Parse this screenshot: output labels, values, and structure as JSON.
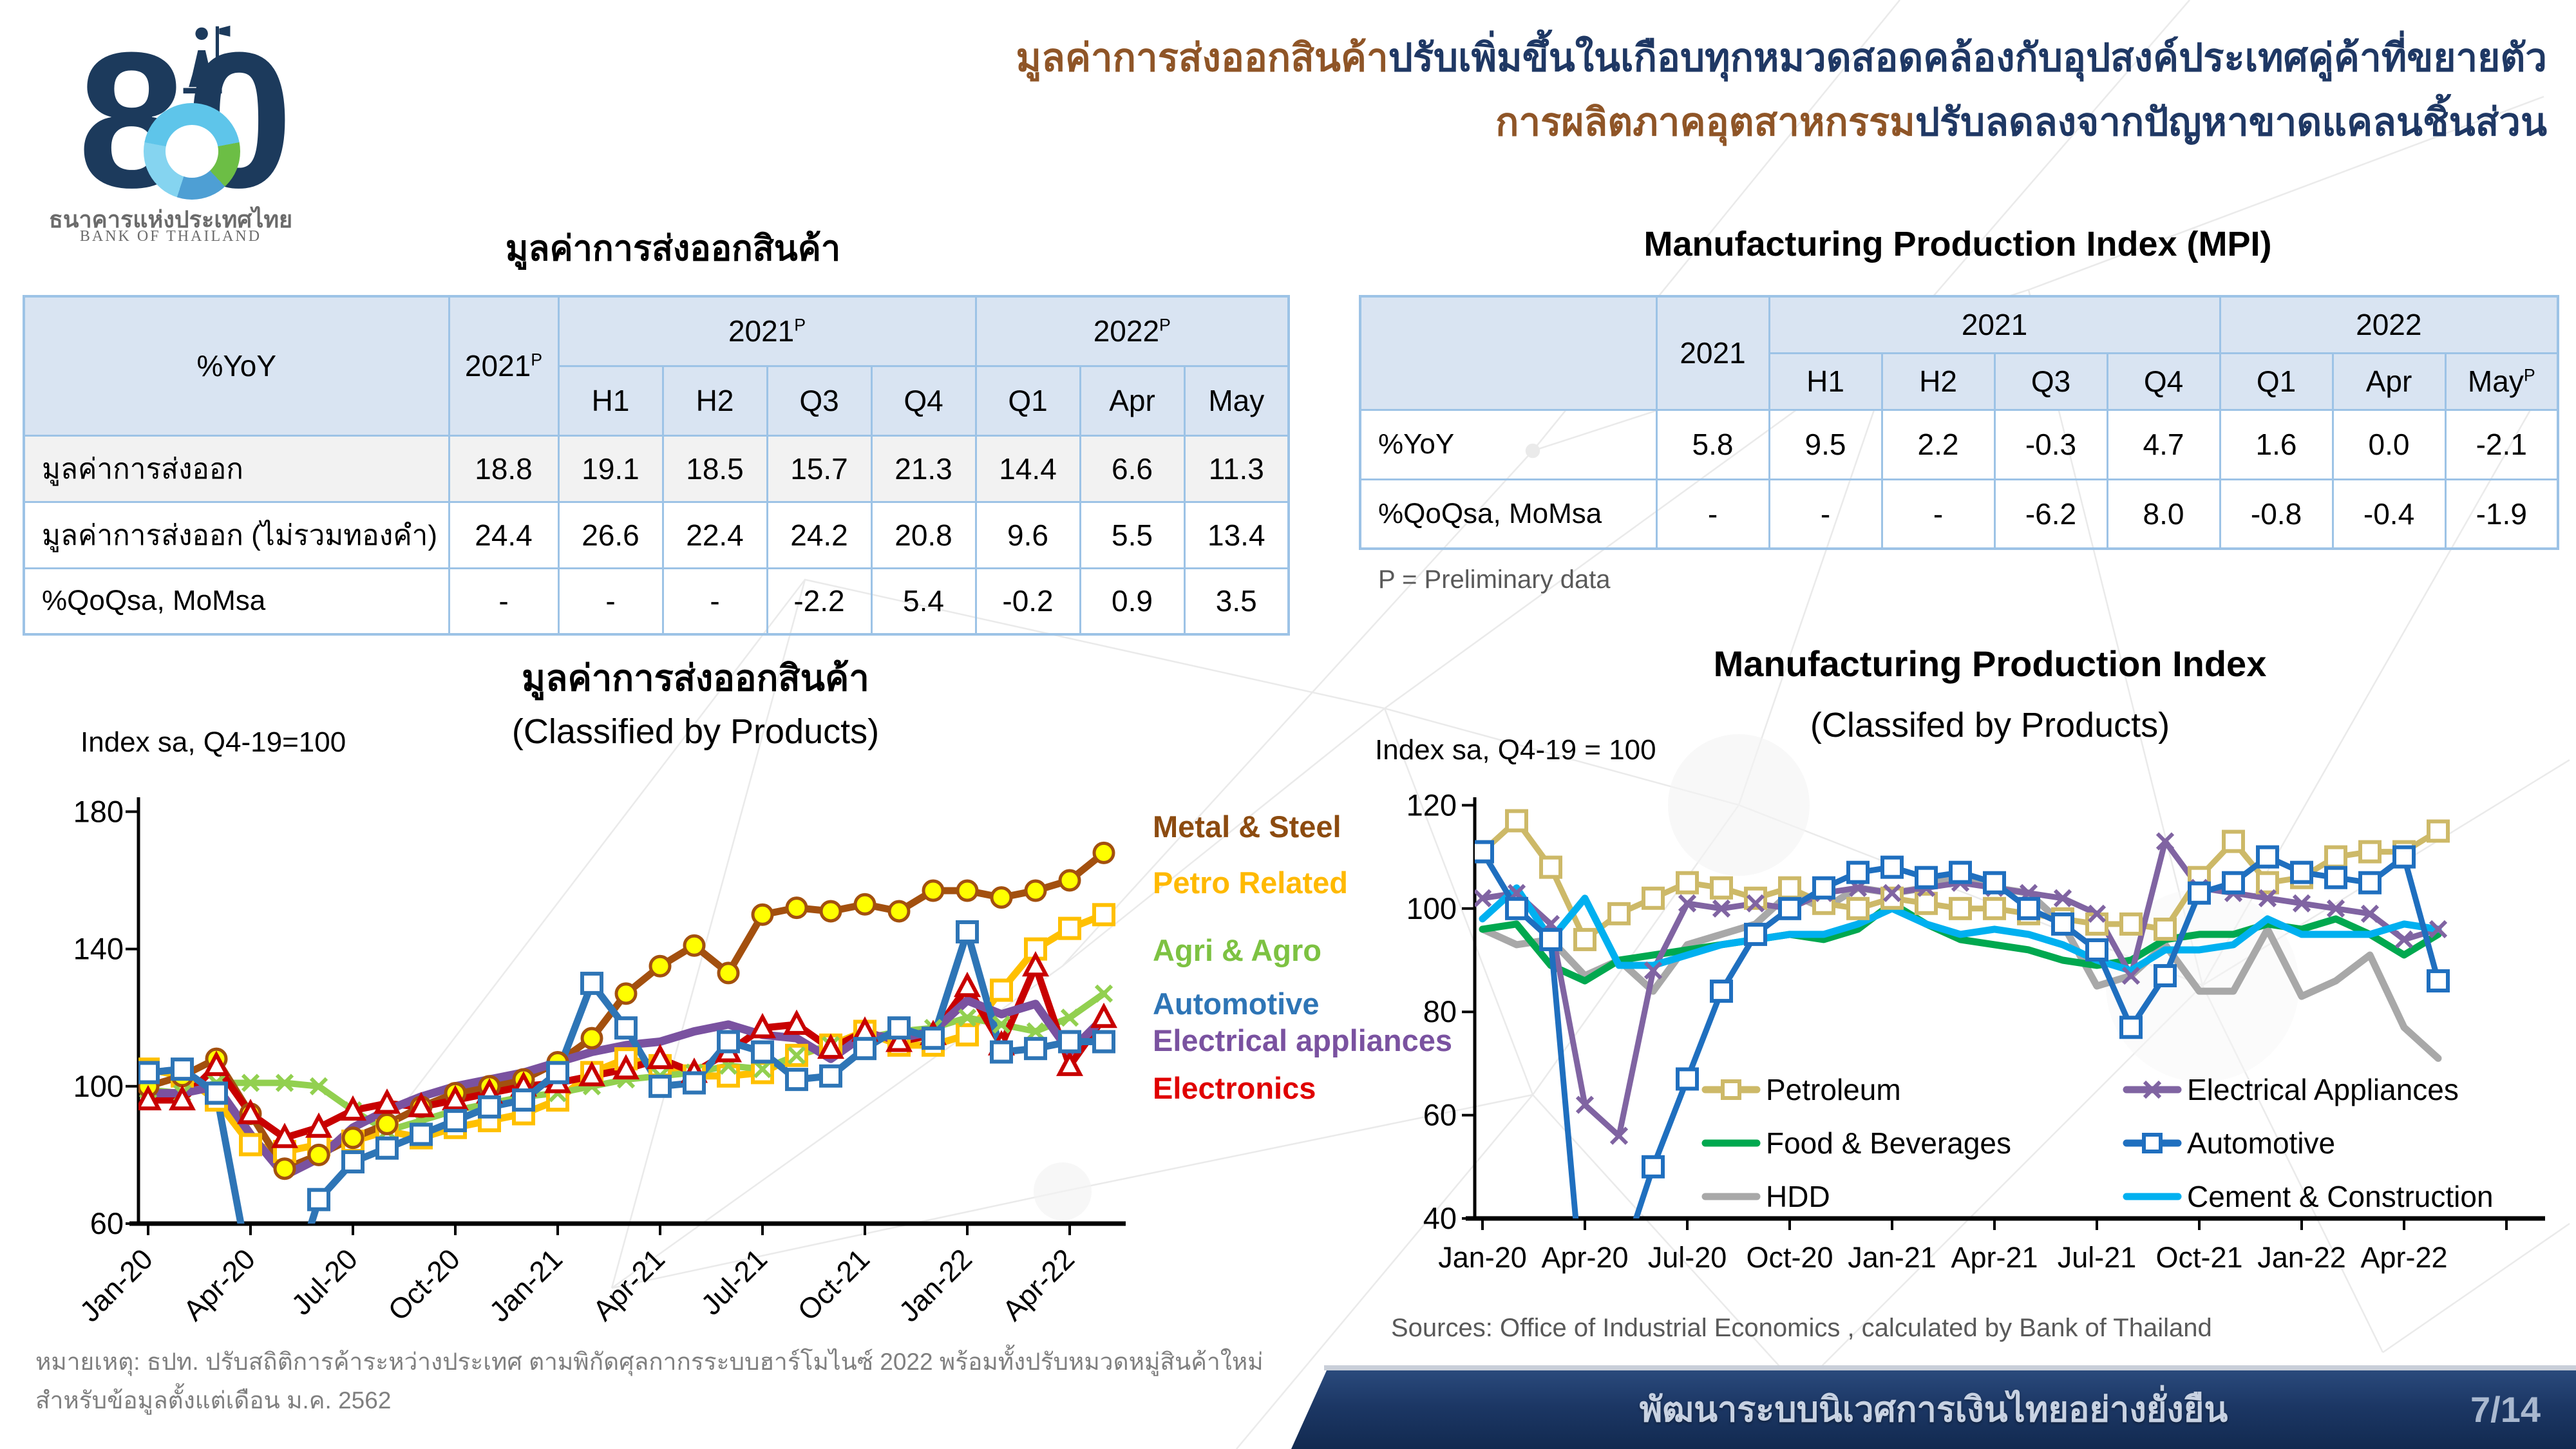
{
  "logo": {
    "anniversary_number": "80",
    "thai_name": "ธนาคารแห่งประเทศไทย",
    "eng_name": "BANK OF THAILAND"
  },
  "headline": {
    "line1_highlight": "มูลค่าการส่งออกสินค้า",
    "line1_rest": "ปรับเพิ่มขึ้นในเกือบทุกหมวดสอดคล้องกับอุปสงค์ประเทศคู่ค้าที่ขยายตัว",
    "line2_highlight": "การผลิตภาคอุตสาหกรรม",
    "line2_rest": "ปรับลดลงจากปัญหาขาดแคลนชิ้นส่วน",
    "highlight_color": "#8F5527",
    "main_color": "#1F3864"
  },
  "export_table": {
    "title": "มูลค่าการส่งออกสินค้า",
    "corner_label": "%YoY",
    "year_col": "2021",
    "group1": "2021",
    "group2": "2022",
    "sup": "P",
    "sub_headers": [
      "H1",
      "H2",
      "Q3",
      "Q4",
      "Q1",
      "Apr",
      "May"
    ],
    "rows": [
      {
        "label": "มูลค่าการส่งออก",
        "values": [
          "18.8",
          "19.1",
          "18.5",
          "15.7",
          "21.3",
          "14.4",
          "6.6",
          "11.3"
        ]
      },
      {
        "label": "มูลค่าการส่งออก (ไม่รวมทองคำ)",
        "values": [
          "24.4",
          "26.6",
          "22.4",
          "24.2",
          "20.8",
          "9.6",
          "5.5",
          "13.4"
        ]
      },
      {
        "label": "%QoQsa, MoMsa",
        "values": [
          "-",
          "-",
          "-",
          "-2.2",
          "5.4",
          "-0.2",
          "0.9",
          "3.5"
        ]
      }
    ]
  },
  "mpi_table": {
    "title": "Manufacturing Production Index (MPI)",
    "corner_label": "",
    "year_col": "2021",
    "group1": "2021",
    "group2": "2022",
    "sup": "P",
    "sub_headers": [
      "H1",
      "H2",
      "Q3",
      "Q4",
      "Q1",
      "Apr",
      "May"
    ],
    "rows": [
      {
        "label": "%YoY",
        "values": [
          "5.8",
          "9.5",
          "2.2",
          "-0.3",
          "4.7",
          "1.6",
          "0.0",
          "-2.1"
        ]
      },
      {
        "label": "%QoQsa, MoMsa",
        "values": [
          "-",
          "-",
          "-",
          "-6.2",
          "8.0",
          "-0.8",
          "-0.4",
          "-1.9"
        ]
      }
    ],
    "note": "P = Preliminary data"
  },
  "chart_data": [
    {
      "type": "line",
      "title": "มูลค่าการส่งออกสินค้า",
      "subtitle": "(Classified by Products)",
      "y_axis_label": "Index sa, Q4-19=100",
      "ylim": [
        60,
        180
      ],
      "yticks": [
        60,
        100,
        140,
        180
      ],
      "grid": false,
      "legend_position": "right-side-labels",
      "x": [
        "Jan-20",
        "Feb-20",
        "Mar-20",
        "Apr-20",
        "May-20",
        "Jun-20",
        "Jul-20",
        "Aug-20",
        "Sep-20",
        "Oct-20",
        "Nov-20",
        "Dec-20",
        "Jan-21",
        "Feb-21",
        "Mar-21",
        "Apr-21",
        "May-21",
        "Jun-21",
        "Jul-21",
        "Aug-21",
        "Sep-21",
        "Oct-21",
        "Nov-21",
        "Dec-21",
        "Jan-22",
        "Feb-22",
        "Mar-22",
        "Apr-22",
        "May-22"
      ],
      "x_tick_labels": [
        "Jan-20",
        "Apr-20",
        "Jul-20",
        "Oct-20",
        "Jan-21",
        "Apr-21",
        "Jul-21",
        "Oct-21",
        "Jan-22",
        "Apr-22"
      ],
      "draw_order": [
        1,
        2,
        0,
        5,
        4,
        3
      ],
      "series": [
        {
          "name": "Metal & Steel",
          "color": "#A3500F",
          "label_color": "#8C4B10",
          "marker": "circle",
          "marker_fill": "#FFFF00",
          "width": 11,
          "values": [
            100,
            103,
            108,
            92,
            76,
            80,
            85,
            89,
            94,
            98,
            100,
            102,
            107,
            114,
            127,
            135,
            141,
            133,
            150,
            152,
            151,
            153,
            151,
            157,
            157,
            155,
            157,
            160,
            168
          ]
        },
        {
          "name": "Petro Related",
          "color": "#FFC000",
          "label_color": "#FFB900",
          "marker": "square",
          "marker_fill": "#FFFFFF",
          "width": 11,
          "values": [
            105,
            103,
            96,
            83,
            81,
            83,
            84,
            87,
            85,
            88,
            90,
            92,
            96,
            104,
            108,
            106,
            103,
            103,
            104,
            109,
            112,
            116,
            112,
            112,
            115,
            128,
            140,
            146,
            150
          ]
        },
        {
          "name": "Agri & Agro",
          "color": "#92D050",
          "label_color": "#7DC242",
          "marker": "x",
          "marker_fill": "#92D050",
          "width": 10,
          "values": [
            99,
            98,
            101,
            101,
            101,
            100,
            93,
            87,
            90,
            93,
            95,
            97,
            98,
            100,
            102,
            103,
            104,
            106,
            105,
            109,
            112,
            114,
            116,
            117,
            120,
            118,
            116,
            120,
            127
          ]
        },
        {
          "name": "Automotive",
          "color": "#2E75B6",
          "label_color": "#2E75B6",
          "marker": "square",
          "marker_fill": "#FFFFFF",
          "width": 11,
          "values": [
            104,
            105,
            98,
            45,
            35,
            67,
            78,
            82,
            86,
            90,
            94,
            96,
            104,
            130,
            117,
            100,
            101,
            113,
            110,
            102,
            103,
            111,
            117,
            114,
            145,
            110,
            111,
            113,
            113
          ]
        },
        {
          "name": "Electrical appliances",
          "color": "#7A52A0",
          "label_color": "#7A52A0",
          "marker": "none",
          "marker_fill": "#7A52A0",
          "width": 13,
          "values": [
            98,
            98,
            100,
            86,
            74,
            79,
            88,
            93,
            97,
            100,
            102,
            104,
            107,
            110,
            112,
            113,
            116,
            118,
            115,
            114,
            108,
            115,
            114,
            116,
            125,
            121,
            124,
            110,
            120
          ]
        },
        {
          "name": "Electronics",
          "color": "#C80000",
          "label_color": "#E00000",
          "marker": "triangle",
          "marker_fill": "#FFFFFF",
          "width": 11,
          "values": [
            96,
            96,
            106,
            92,
            85,
            88,
            93,
            95,
            94,
            96,
            98,
            100,
            101,
            103,
            105,
            108,
            104,
            110,
            117,
            118,
            111,
            116,
            113,
            115,
            129,
            112,
            135,
            106,
            120
          ]
        }
      ],
      "footnote_line1": "หมายเหตุ: ธปท. ปรับสถิติการค้าระหว่างประเทศ ตามพิกัดศุลกากรระบบฮาร์โมไนซ์ 2022 พร้อมทั้งปรับหมวดหมู่สินค้าใหม่",
      "footnote_line2": "สำหรับข้อมูลตั้งแต่เดือน ม.ค. 2562"
    },
    {
      "type": "line",
      "title": "Manufacturing Production Index",
      "subtitle": "(Classifed by Products)",
      "y_axis_label": "Index sa, Q4-19 = 100",
      "ylim": [
        40,
        120
      ],
      "yticks": [
        40,
        60,
        80,
        100,
        120
      ],
      "grid": false,
      "legend_position": "inside-bottom",
      "x": [
        "Jan-20",
        "Feb-20",
        "Mar-20",
        "Apr-20",
        "May-20",
        "Jun-20",
        "Jul-20",
        "Aug-20",
        "Sep-20",
        "Oct-20",
        "Nov-20",
        "Dec-20",
        "Jan-21",
        "Feb-21",
        "Mar-21",
        "Apr-21",
        "May-21",
        "Jun-21",
        "Jul-21",
        "Aug-21",
        "Sep-21",
        "Oct-21",
        "Nov-21",
        "Dec-21",
        "Jan-22",
        "Feb-22",
        "Mar-22",
        "Apr-22",
        "May-22"
      ],
      "x_tick_labels": [
        "Jan-20",
        "Apr-20",
        "Jul-20",
        "Oct-20",
        "Jan-21",
        "Apr-21",
        "Jul-21",
        "Oct-21",
        "Jan-22",
        "Apr-22"
      ],
      "draw_order": [
        2,
        0,
        1,
        3,
        5,
        4
      ],
      "legend": {
        "columns": [
          [
            "Petroleum",
            "Food & Beverages",
            "HDD"
          ],
          [
            "Electrical Appliances",
            "Automotive",
            "Cement & Construction"
          ]
        ]
      },
      "series": [
        {
          "name": "Petroleum",
          "color": "#CDB968",
          "marker": "square",
          "marker_fill": "#FFFFFF",
          "width": 9,
          "values": [
            111,
            117,
            108,
            94,
            99,
            102,
            105,
            104,
            102,
            104,
            101,
            100,
            102,
            101,
            100,
            100,
            99,
            98,
            97,
            97,
            96,
            106,
            113,
            105,
            106,
            110,
            111,
            111,
            115
          ]
        },
        {
          "name": "Food & Beverages",
          "color": "#00A84F",
          "marker": "none",
          "marker_fill": "#00A84F",
          "width": 11,
          "values": [
            96,
            97,
            89,
            86,
            90,
            91,
            92,
            93,
            94,
            95,
            94,
            96,
            101,
            97,
            94,
            93,
            92,
            90,
            89,
            90,
            94,
            95,
            95,
            97,
            96,
            98,
            95,
            91,
            95
          ]
        },
        {
          "name": "HDD",
          "color": "#A8A8A8",
          "marker": "none",
          "marker_fill": "#A8A8A8",
          "width": 11,
          "values": [
            96,
            93,
            94,
            87,
            90,
            84,
            93,
            95,
            97,
            103,
            100,
            104,
            103,
            104,
            107,
            104,
            103,
            97,
            85,
            87,
            93,
            84,
            84,
            96,
            83,
            86,
            91,
            77,
            71
          ]
        },
        {
          "name": "Electrical Appliances",
          "color": "#8064A2",
          "marker": "x",
          "marker_fill": "#8064A2",
          "width": 9,
          "values": [
            102,
            103,
            97,
            62,
            56,
            88,
            101,
            100,
            101,
            100,
            103,
            104,
            103,
            104,
            105,
            104,
            103,
            102,
            99,
            87,
            113,
            104,
            103,
            102,
            101,
            100,
            99,
            94,
            96
          ]
        },
        {
          "name": "Automotive",
          "color": "#1F6FBF",
          "marker": "square",
          "marker_fill": "#FFFFFF",
          "width": 9,
          "values": [
            111,
            100,
            94,
            20,
            30,
            50,
            67,
            84,
            95,
            100,
            104,
            107,
            108,
            106,
            107,
            105,
            100,
            97,
            92,
            77,
            87,
            103,
            105,
            110,
            107,
            106,
            105,
            110,
            86
          ]
        },
        {
          "name": "Cement & Construction",
          "color": "#00B0F0",
          "marker": "none",
          "marker_fill": "#00B0F0",
          "width": 11,
          "values": [
            98,
            104,
            94,
            102,
            89,
            89,
            91,
            93,
            94,
            95,
            95,
            97,
            100,
            97,
            95,
            96,
            95,
            93,
            90,
            88,
            92,
            92,
            93,
            98,
            95,
            95,
            95,
            97,
            96
          ]
        }
      ],
      "source": "Sources: Office of Industrial Economics , calculated by Bank of Thailand"
    }
  ],
  "footer": {
    "text": "พัฒนาระบบนิเวศการเงินไทยอย่างยั่งยืน",
    "page": "7/14"
  }
}
